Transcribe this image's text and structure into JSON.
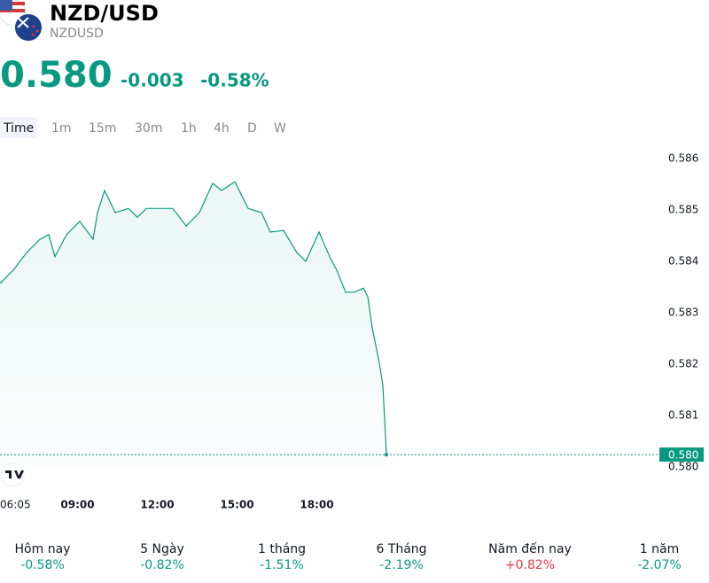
{
  "header": {
    "title": "NZD/USD",
    "subtitle": "NZDUSD",
    "price": "0.580",
    "change": "-0.003",
    "change_percent": "-0.58%"
  },
  "timeframes": [
    "Time",
    "1m",
    "15m",
    "30m",
    "1h",
    "4h",
    "D",
    "W"
  ],
  "chart_data": {
    "type": "line",
    "color": "#089981",
    "x": [
      365,
      395,
      425,
      455,
      475,
      489,
      515,
      545,
      575,
      585,
      601,
      625,
      655,
      675,
      695,
      725,
      755,
      785,
      815,
      845,
      865,
      895,
      925,
      955,
      975,
      1005,
      1035,
      1055,
      1085,
      1109,
      1125,
      1145,
      1165,
      1185,
      1195,
      1205,
      1221,
      1229,
      1237
    ],
    "values": [
      0.58357,
      0.58383,
      0.58417,
      0.58443,
      0.58452,
      0.58409,
      0.58452,
      0.58478,
      0.58443,
      0.58495,
      0.58538,
      0.58495,
      0.58503,
      0.58486,
      0.58503,
      0.58503,
      0.58503,
      0.58469,
      0.58495,
      0.58552,
      0.58538,
      0.58555,
      0.58503,
      0.58495,
      0.58457,
      0.5846,
      0.58417,
      0.584,
      0.58457,
      0.58409,
      0.58383,
      0.5834,
      0.5834,
      0.58348,
      0.58331,
      0.58271,
      0.58202,
      0.58159,
      0.58024
    ],
    "xlim": [
      365,
      1855
    ],
    "xticks": [
      {
        "value": 365,
        "label": "06:05"
      },
      {
        "value": 540,
        "label": "09:00"
      },
      {
        "value": 720,
        "label": "12:00"
      },
      {
        "value": 900,
        "label": "15:00"
      },
      {
        "value": 1080,
        "label": "18:00"
      }
    ],
    "ylim": [
      0.58,
      0.586
    ],
    "yticks": [
      0.586,
      0.585,
      0.584,
      0.583,
      0.582,
      0.581,
      {
        "value": 0.58,
        "label": "0.580"
      }
    ]
  },
  "periods": [
    {
      "label": "Hôm nay",
      "value": "-0.58%",
      "color": "#089981"
    },
    {
      "label": "5 Ngày",
      "value": "-0.82%",
      "color": "#089981"
    },
    {
      "label": "1 tháng",
      "value": "-1.51%",
      "color": "#089981"
    },
    {
      "label": "6 Tháng",
      "value": "-2.19%",
      "color": "#089981"
    },
    {
      "label": "Năm đến nay",
      "value": "+0.82%",
      "color": "#f23645"
    },
    {
      "label": "1 năm",
      "value": "-2.07%",
      "color": "#089981"
    }
  ]
}
